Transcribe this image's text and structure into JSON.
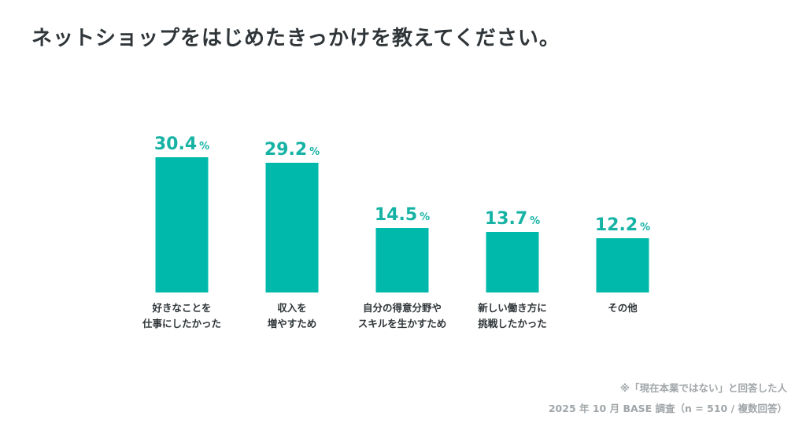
{
  "title": "ネットショップをはじめたきっかけを教えてください。",
  "chart_data": {
    "type": "bar",
    "title": "ネットショップをはじめたきっかけを教えてください。",
    "categories": [
      [
        "好きなことを",
        "仕事にしたかった"
      ],
      [
        "収入を",
        "増やすため"
      ],
      [
        "自分の得意分野や",
        "スキルを生かすため"
      ],
      [
        "新しい働き方に",
        "挑戦したかった"
      ],
      [
        "その他"
      ]
    ],
    "values": [
      30.4,
      29.2,
      14.5,
      13.7,
      12.2
    ],
    "value_suffix": "%",
    "ylim": [
      0,
      32
    ],
    "bar_color": "#00b9aa",
    "label_color": "#16b3a5",
    "xlabel": "",
    "ylabel": ""
  },
  "notes": {
    "line1": "※「現在本業ではない」と回答した人",
    "line2": "2025 年 10 月 BASE 調査（n = 510 / 複数回答）"
  }
}
